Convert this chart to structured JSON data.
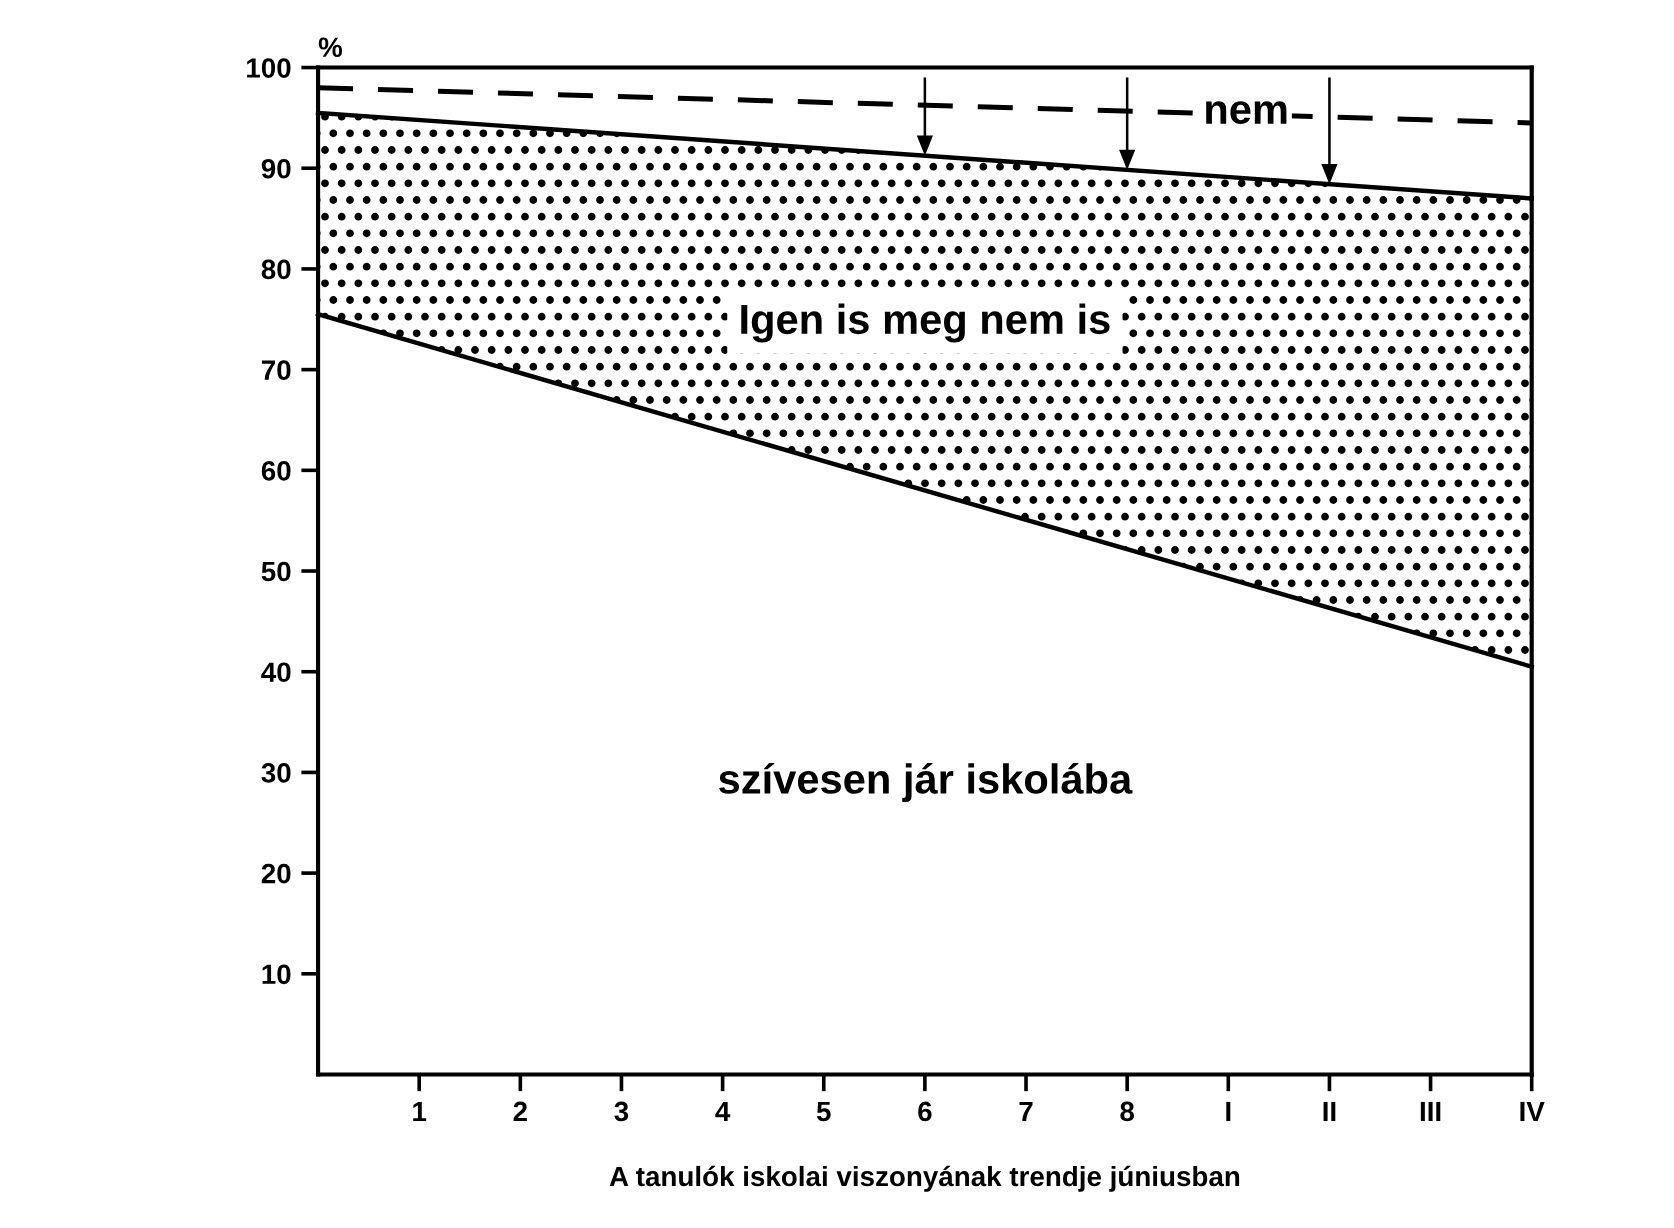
{
  "chart_data": {
    "type": "area",
    "stacked": true,
    "xlabel": "A tanulók iskolai viszonyának trendje júniusban",
    "ylabel": "%",
    "x": [
      0,
      12
    ],
    "series": [
      {
        "name": "szívesen jár iskolába",
        "color": "#ffffff",
        "values": [
          75.5,
          40.5
        ]
      },
      {
        "name": "Igen is meg nem is",
        "color": "#000000",
        "values": [
          20,
          46.5
        ]
      },
      {
        "type": "line",
        "line_style": "dashed",
        "color": "#000000",
        "values": [
          98,
          94.5
        ]
      }
    ],
    "xlim": [
      0,
      12
    ],
    "xticks": [
      1,
      2,
      3,
      4,
      5,
      6,
      7,
      8,
      {
        "value": 9,
        "label": "I"
      },
      {
        "value": 10,
        "label": "II"
      },
      {
        "value": 11,
        "label": "III"
      },
      {
        "value": 12,
        "label": "IV"
      }
    ],
    "ylim": [
      0,
      100
    ],
    "yticks": [
      10,
      20,
      30,
      40,
      50,
      60,
      70,
      80,
      90,
      100
    ],
    "annotations": [
      "nem"
    ],
    "grid": false,
    "legend": false
  }
}
